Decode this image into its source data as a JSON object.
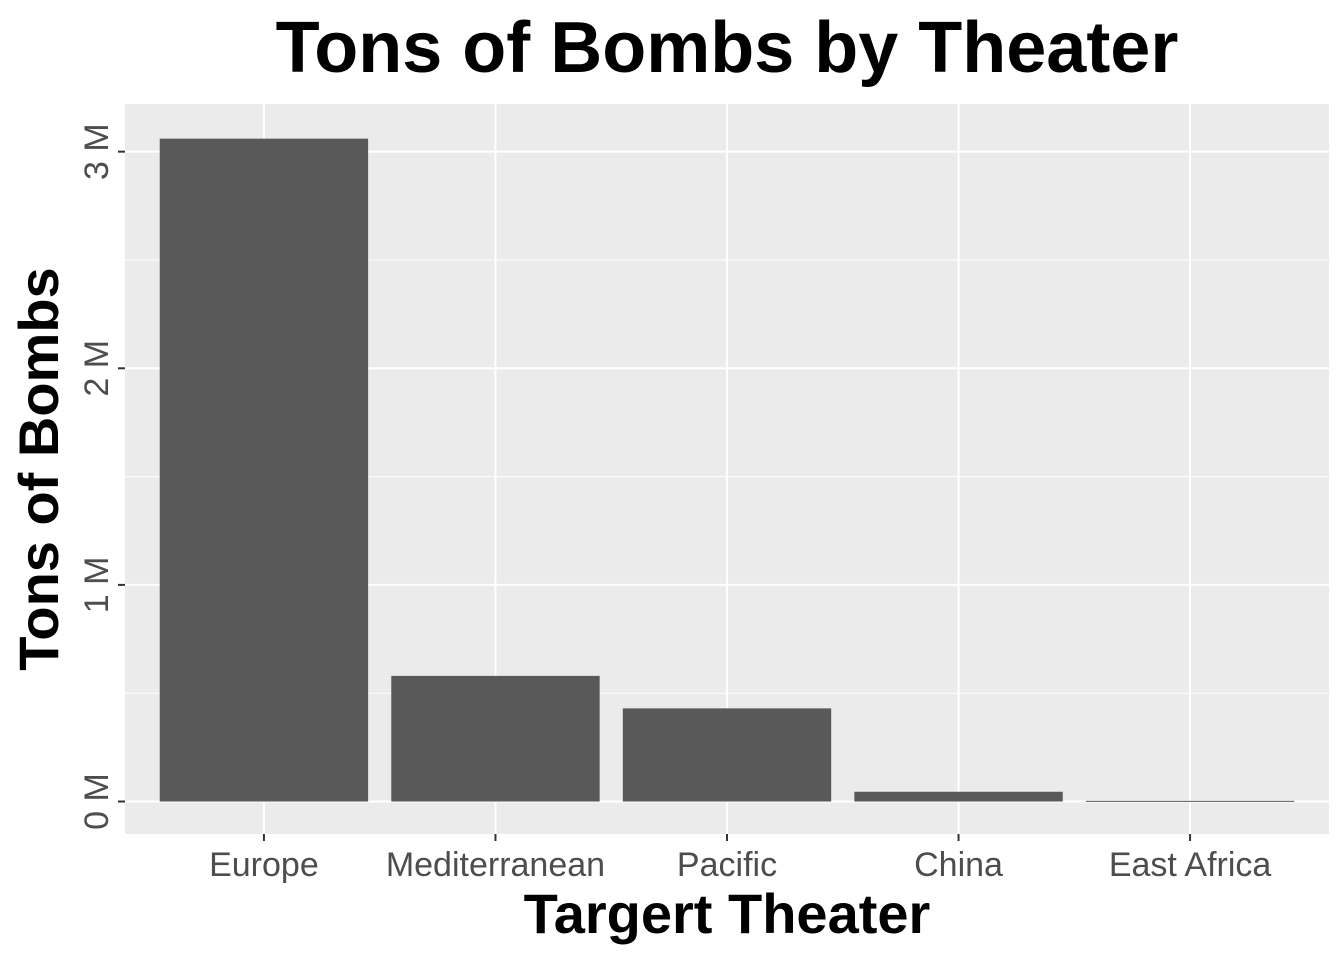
{
  "chart_data": {
    "type": "bar",
    "title": "Tons of Bombs by Theater",
    "xlabel": "Targert Theater",
    "ylabel": "Tons of Bombs",
    "categories": [
      "Europe",
      "Mediterranean",
      "Pacific",
      "China",
      "East Africa"
    ],
    "values": [
      3060000,
      580000,
      430000,
      45000,
      3000
    ],
    "ylim": [
      -150000,
      3220000
    ],
    "yticks": [
      0,
      1000000,
      2000000,
      3000000
    ],
    "ytick_labels": [
      "0 M",
      "1 M",
      "2 M",
      "3 M"
    ],
    "grid": true,
    "legend": "none",
    "colors": {
      "bar": "#595959",
      "panel": "#ebebeb",
      "grid": "#ffffff",
      "tick_text": "#4d4d4d",
      "tick_mark": "#333333"
    }
  }
}
